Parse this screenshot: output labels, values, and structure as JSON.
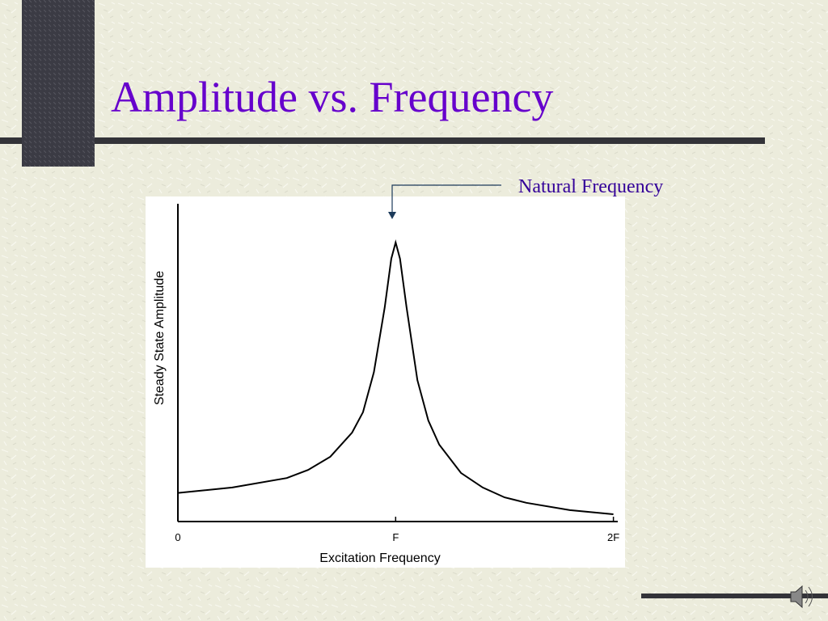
{
  "chart_data": {
    "type": "line",
    "title": "Amplitude vs. Frequency",
    "annotation": "Natural Frequency",
    "x_label": "Excitation Frequency",
    "y_label": "Steady State Amplitude",
    "x": [
      0,
      0.25,
      0.5,
      0.6,
      0.7,
      0.8,
      0.85,
      0.9,
      0.95,
      0.98,
      1.0,
      1.02,
      1.05,
      1.1,
      1.15,
      1.2,
      1.3,
      1.4,
      1.5,
      1.6,
      1.8,
      2.0
    ],
    "values": [
      0.9,
      1.07,
      1.37,
      1.63,
      2.04,
      2.8,
      3.44,
      4.7,
      6.74,
      8.27,
      8.78,
      8.27,
      6.74,
      4.45,
      3.18,
      2.42,
      1.53,
      1.07,
      0.76,
      0.59,
      0.36,
      0.23
    ],
    "color": "#000000",
    "xlim": [
      0,
      2.02
    ],
    "ylim": [
      0,
      10
    ],
    "xticks": [
      0,
      {
        "value": 1,
        "label": "F"
      },
      {
        "value": 2,
        "label": "2F"
      }
    ]
  }
}
